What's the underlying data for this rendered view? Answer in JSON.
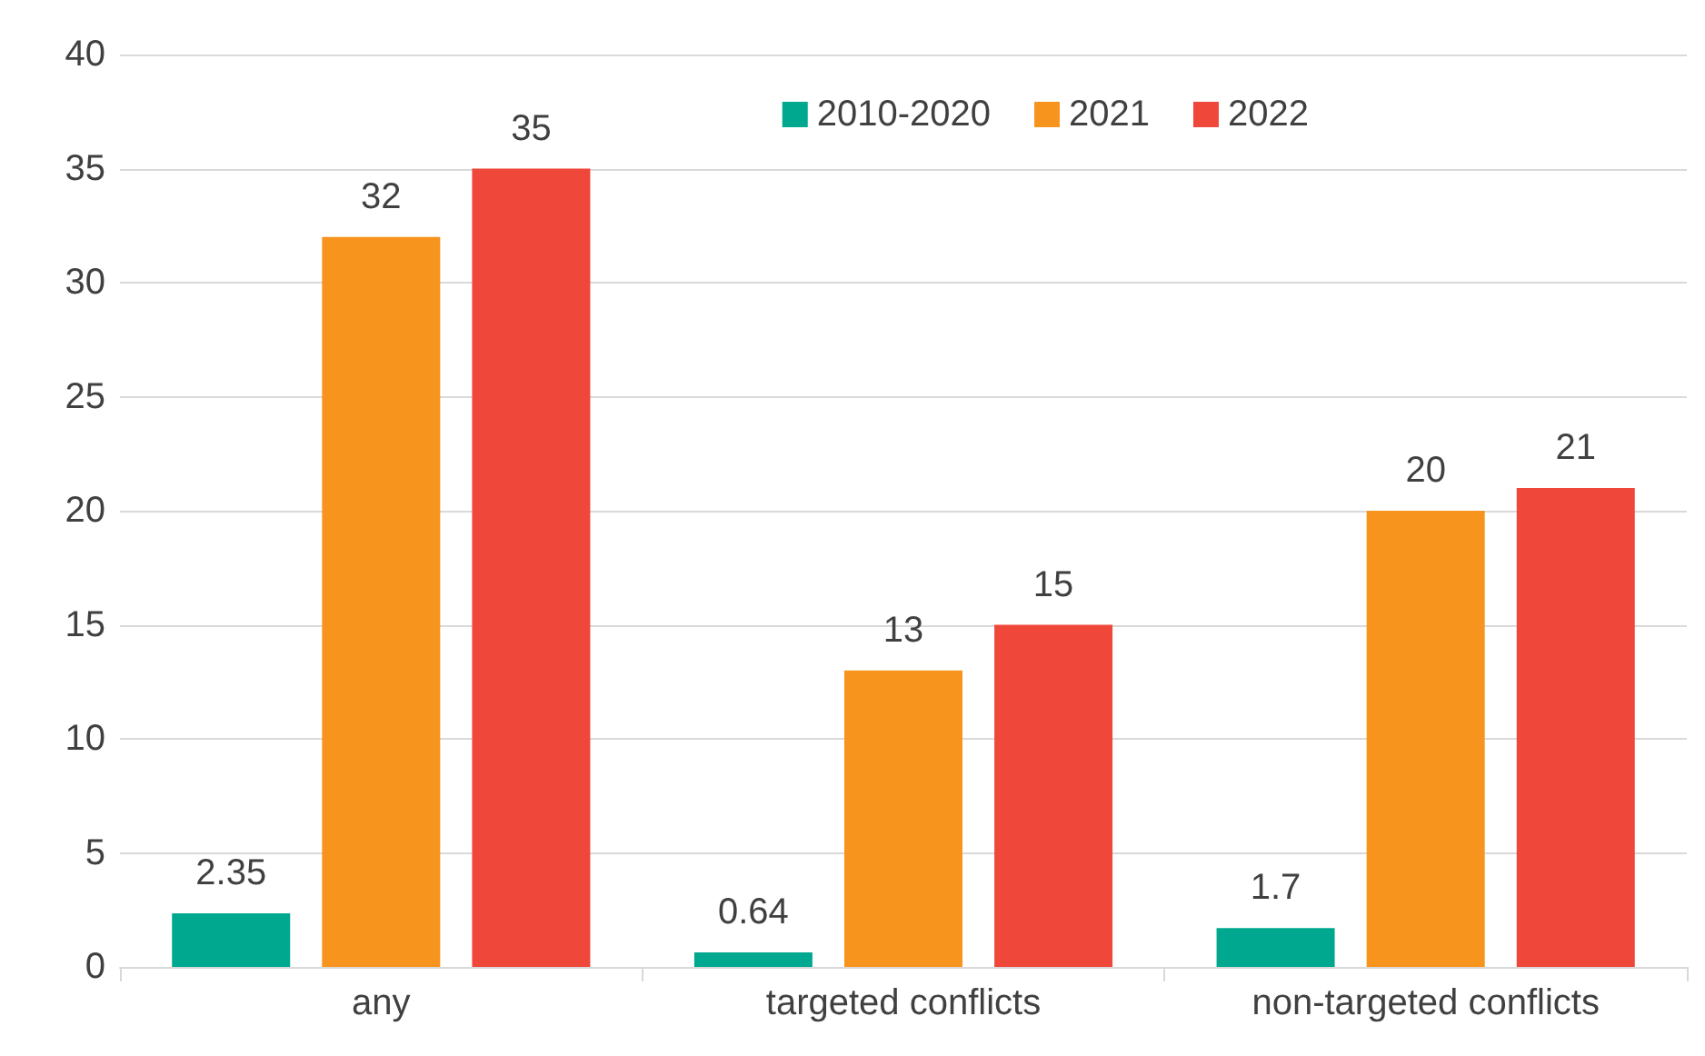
{
  "chart_data": {
    "type": "bar",
    "categories": [
      "any",
      "targeted conflicts",
      "non-targeted conflicts"
    ],
    "series": [
      {
        "name": "2010-2020",
        "color": "#00a88f",
        "values": [
          2.35,
          0.64,
          1.7
        ]
      },
      {
        "name": "2021",
        "color": "#f7941d",
        "values": [
          32,
          13,
          20
        ]
      },
      {
        "name": "2022",
        "color": "#ef473a",
        "values": [
          35,
          15,
          21
        ]
      }
    ],
    "ylim": [
      0,
      40
    ],
    "yticks": [
      0,
      5,
      10,
      15,
      20,
      25,
      30,
      35,
      40
    ],
    "grid": "y",
    "legend": "top right",
    "data_labels": true
  }
}
